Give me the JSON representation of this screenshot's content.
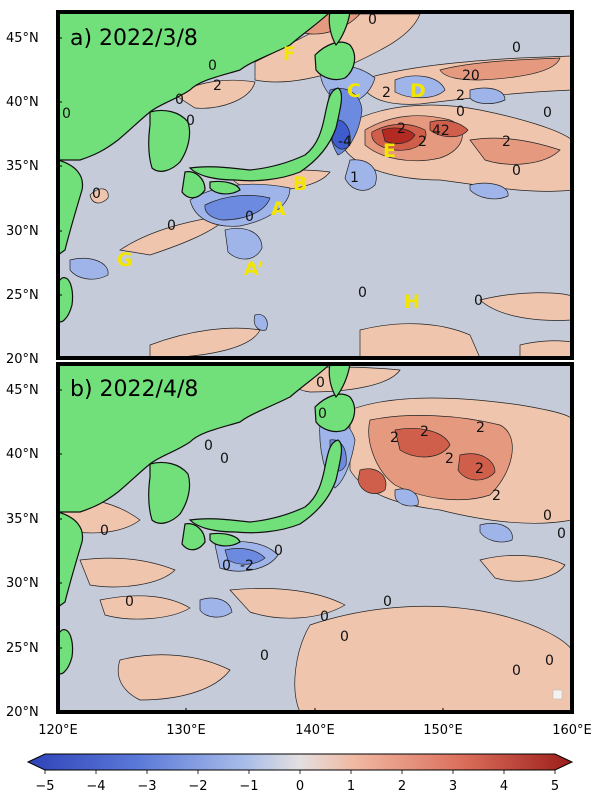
{
  "panels": [
    {
      "title": "a) 2022/3/8",
      "region_labels": [
        "F",
        "C",
        "D",
        "E",
        "B",
        "A",
        "A’",
        "G",
        "H"
      ],
      "contour_labels": [
        "0",
        "0",
        "0",
        "2",
        "20",
        "0",
        "2",
        "2",
        "0",
        "-4",
        "2",
        "42",
        "2",
        "0",
        "0",
        "0",
        "1",
        "2",
        "0",
        "0",
        "0",
        "0",
        "0",
        "0"
      ]
    },
    {
      "title": "b) 2022/4/8",
      "contour_labels": [
        "0",
        "0",
        "0",
        "2",
        "2",
        "2",
        "2",
        "2",
        "2",
        "0",
        "0",
        "0",
        "0",
        "-2",
        "0",
        "0",
        "0",
        "0",
        "0",
        "0",
        "0",
        "0",
        "0"
      ]
    }
  ],
  "axes": {
    "lat_ticks": [
      "45°N",
      "40°N",
      "35°N",
      "30°N",
      "25°N",
      "20°N"
    ],
    "lon_ticks": [
      "120°E",
      "130°E",
      "140°E",
      "150°E",
      "160°E"
    ]
  },
  "colorbar": {
    "ticks": [
      "−5",
      "−4",
      "−3",
      "−2",
      "−1",
      "0",
      "1",
      "2",
      "3",
      "4",
      "5"
    ],
    "range": [
      -5,
      5
    ],
    "colors": [
      "#3a4fc4",
      "#5a78d8",
      "#89a6e6",
      "#b9cbee",
      "#c7cedb",
      "#f0c8b2",
      "#e8a088",
      "#dd7563",
      "#c9473d",
      "#a5221f"
    ]
  },
  "map_colors": {
    "ocean": "#c5cbd9",
    "land": "#72e07a",
    "warm_light": "#efc5ae",
    "warm_mid": "#e59a80",
    "warm_strong": "#cf5e4b",
    "warm_max": "#b22a22",
    "cold_light": "#9fb5ea",
    "cold_mid": "#6c8be0",
    "cold_strong": "#3f5ccc"
  }
}
